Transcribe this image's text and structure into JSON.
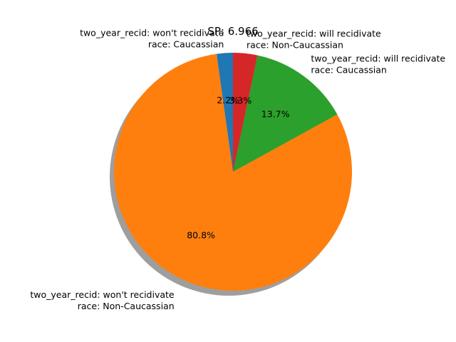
{
  "chart_data": {
    "type": "pie",
    "title": "SP: 6.966",
    "slices": [
      {
        "label_line1": "two_year_recid: won't recidivate",
        "label_line2": "race: Caucassian",
        "pct_label": "2.2%",
        "value": 2.2,
        "color": "#1f77b4"
      },
      {
        "label_line1": "two_year_recid: won't recidivate",
        "label_line2": "race: Non-Caucassian",
        "pct_label": "80.8%",
        "value": 80.8,
        "color": "#ff7f0e"
      },
      {
        "label_line1": "two_year_recid: will recidivate",
        "label_line2": "race: Caucassian",
        "pct_label": "13.7%",
        "value": 13.7,
        "color": "#2ca02c"
      },
      {
        "label_line1": "two_year_recid: will recidivate",
        "label_line2": "race: Non-Caucassian",
        "pct_label": "3.3%",
        "value": 3.3,
        "color": "#d62728"
      }
    ],
    "start_angle_deg": 90,
    "counterclockwise": true,
    "shadow": true,
    "legend": "none"
  }
}
